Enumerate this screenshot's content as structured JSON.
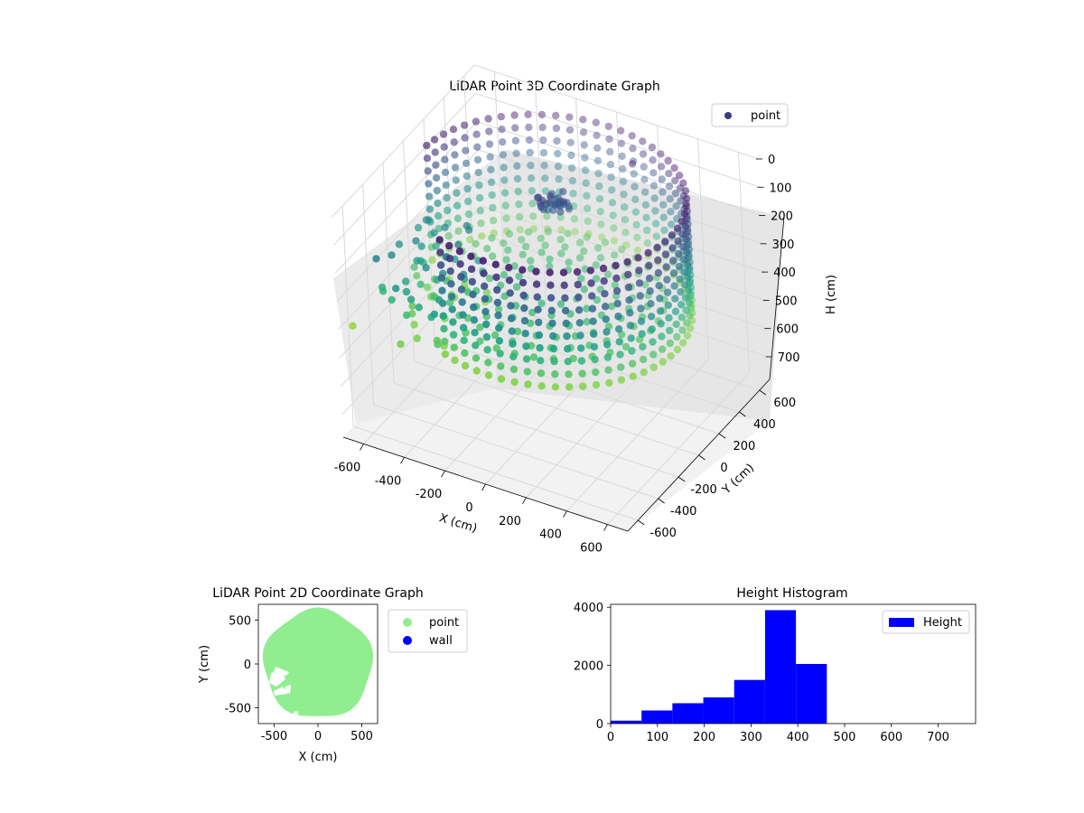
{
  "chart_data": [
    {
      "type": "scatter",
      "title": "LiDAR Point 3D Coordinate Graph",
      "xlabel": "X (cm)",
      "ylabel": "Y (cm)",
      "zlabel": "H (cm)",
      "xlim": [
        -700,
        700
      ],
      "ylim": [
        -700,
        700
      ],
      "zlim": [
        780,
        0
      ],
      "x_ticks": [
        "-600",
        "-400",
        "-200",
        "0",
        "200",
        "400",
        "600"
      ],
      "y_ticks": [
        "-600",
        "-400",
        "-200",
        "0",
        "200",
        "400",
        "600"
      ],
      "z_ticks": [
        "0",
        "100",
        "200",
        "300",
        "400",
        "500",
        "600",
        "700"
      ],
      "grid": true,
      "legend": {
        "position": "top-right",
        "entries": [
          "point"
        ]
      },
      "series": [
        {
          "name": "point",
          "color": "#3b3a80",
          "colormap": "viridis",
          "shape": "cylindrical wall of points, radius about 620 cm, heights 0–460 cm, with a dense floor region near H 400 cm and scattered points in the X < -200 region"
        }
      ]
    },
    {
      "type": "scatter",
      "title": "LiDAR Point 2D Coordinate Graph",
      "xlabel": "X (cm)",
      "ylabel": "Y (cm)",
      "xlim": [
        -680,
        680
      ],
      "ylim": [
        -680,
        680
      ],
      "x_ticks": [
        "-500",
        "0",
        "500"
      ],
      "y_ticks": [
        "-500",
        "0",
        "500"
      ],
      "legend": {
        "position": "outside-right",
        "entries": [
          "point",
          "wall"
        ]
      },
      "series": [
        {
          "name": "point",
          "color": "#90ee90"
        },
        {
          "name": "wall",
          "color": "#0000ff"
        }
      ]
    },
    {
      "type": "bar",
      "title": "Height Histogram",
      "xlim": [
        0,
        780
      ],
      "ylim": [
        0,
        4100
      ],
      "x_ticks": [
        "0",
        "100",
        "200",
        "300",
        "400",
        "500",
        "600",
        "700"
      ],
      "y_ticks": [
        "0",
        "2000",
        "4000"
      ],
      "legend": {
        "position": "top-right",
        "entries": [
          "Height"
        ]
      },
      "series": [
        {
          "name": "Height",
          "color": "#0000ff",
          "bins": [
            0,
            66,
            132,
            198,
            264,
            330,
            396,
            462,
            528,
            594,
            660,
            726
          ],
          "values": [
            100,
            450,
            700,
            900,
            1500,
            3900,
            2050,
            0,
            0,
            0,
            0
          ]
        }
      ]
    }
  ]
}
